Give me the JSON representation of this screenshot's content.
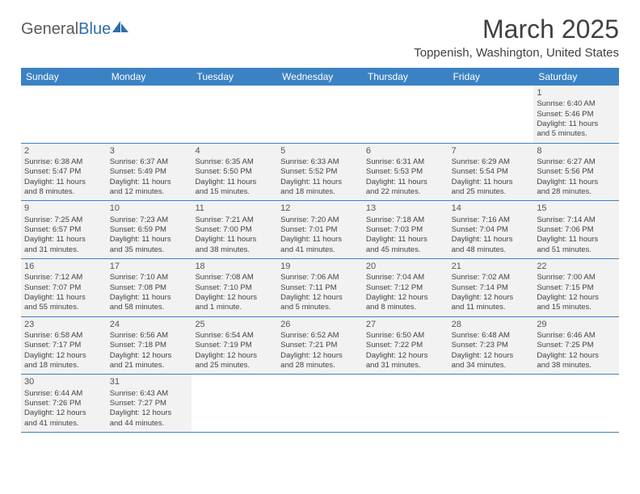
{
  "logo": {
    "text1": "General",
    "text2": "Blue"
  },
  "title": "March 2025",
  "location": "Toppenish, Washington, United States",
  "colors": {
    "header_bar": "#3b82c4",
    "cell_fill": "#f2f2f2",
    "row_border": "#3b82c4",
    "text": "#404040",
    "logo_gray": "#5a5a5a",
    "logo_blue": "#2f6fab"
  },
  "weekdays": [
    "Sunday",
    "Monday",
    "Tuesday",
    "Wednesday",
    "Thursday",
    "Friday",
    "Saturday"
  ],
  "weeks": [
    [
      null,
      null,
      null,
      null,
      null,
      null,
      {
        "n": "1",
        "sr": "Sunrise: 6:40 AM",
        "ss": "Sunset: 5:46 PM",
        "d1": "Daylight: 11 hours",
        "d2": "and 5 minutes."
      }
    ],
    [
      {
        "n": "2",
        "sr": "Sunrise: 6:38 AM",
        "ss": "Sunset: 5:47 PM",
        "d1": "Daylight: 11 hours",
        "d2": "and 8 minutes."
      },
      {
        "n": "3",
        "sr": "Sunrise: 6:37 AM",
        "ss": "Sunset: 5:49 PM",
        "d1": "Daylight: 11 hours",
        "d2": "and 12 minutes."
      },
      {
        "n": "4",
        "sr": "Sunrise: 6:35 AM",
        "ss": "Sunset: 5:50 PM",
        "d1": "Daylight: 11 hours",
        "d2": "and 15 minutes."
      },
      {
        "n": "5",
        "sr": "Sunrise: 6:33 AM",
        "ss": "Sunset: 5:52 PM",
        "d1": "Daylight: 11 hours",
        "d2": "and 18 minutes."
      },
      {
        "n": "6",
        "sr": "Sunrise: 6:31 AM",
        "ss": "Sunset: 5:53 PM",
        "d1": "Daylight: 11 hours",
        "d2": "and 22 minutes."
      },
      {
        "n": "7",
        "sr": "Sunrise: 6:29 AM",
        "ss": "Sunset: 5:54 PM",
        "d1": "Daylight: 11 hours",
        "d2": "and 25 minutes."
      },
      {
        "n": "8",
        "sr": "Sunrise: 6:27 AM",
        "ss": "Sunset: 5:56 PM",
        "d1": "Daylight: 11 hours",
        "d2": "and 28 minutes."
      }
    ],
    [
      {
        "n": "9",
        "sr": "Sunrise: 7:25 AM",
        "ss": "Sunset: 6:57 PM",
        "d1": "Daylight: 11 hours",
        "d2": "and 31 minutes."
      },
      {
        "n": "10",
        "sr": "Sunrise: 7:23 AM",
        "ss": "Sunset: 6:59 PM",
        "d1": "Daylight: 11 hours",
        "d2": "and 35 minutes."
      },
      {
        "n": "11",
        "sr": "Sunrise: 7:21 AM",
        "ss": "Sunset: 7:00 PM",
        "d1": "Daylight: 11 hours",
        "d2": "and 38 minutes."
      },
      {
        "n": "12",
        "sr": "Sunrise: 7:20 AM",
        "ss": "Sunset: 7:01 PM",
        "d1": "Daylight: 11 hours",
        "d2": "and 41 minutes."
      },
      {
        "n": "13",
        "sr": "Sunrise: 7:18 AM",
        "ss": "Sunset: 7:03 PM",
        "d1": "Daylight: 11 hours",
        "d2": "and 45 minutes."
      },
      {
        "n": "14",
        "sr": "Sunrise: 7:16 AM",
        "ss": "Sunset: 7:04 PM",
        "d1": "Daylight: 11 hours",
        "d2": "and 48 minutes."
      },
      {
        "n": "15",
        "sr": "Sunrise: 7:14 AM",
        "ss": "Sunset: 7:06 PM",
        "d1": "Daylight: 11 hours",
        "d2": "and 51 minutes."
      }
    ],
    [
      {
        "n": "16",
        "sr": "Sunrise: 7:12 AM",
        "ss": "Sunset: 7:07 PM",
        "d1": "Daylight: 11 hours",
        "d2": "and 55 minutes."
      },
      {
        "n": "17",
        "sr": "Sunrise: 7:10 AM",
        "ss": "Sunset: 7:08 PM",
        "d1": "Daylight: 11 hours",
        "d2": "and 58 minutes."
      },
      {
        "n": "18",
        "sr": "Sunrise: 7:08 AM",
        "ss": "Sunset: 7:10 PM",
        "d1": "Daylight: 12 hours",
        "d2": "and 1 minute."
      },
      {
        "n": "19",
        "sr": "Sunrise: 7:06 AM",
        "ss": "Sunset: 7:11 PM",
        "d1": "Daylight: 12 hours",
        "d2": "and 5 minutes."
      },
      {
        "n": "20",
        "sr": "Sunrise: 7:04 AM",
        "ss": "Sunset: 7:12 PM",
        "d1": "Daylight: 12 hours",
        "d2": "and 8 minutes."
      },
      {
        "n": "21",
        "sr": "Sunrise: 7:02 AM",
        "ss": "Sunset: 7:14 PM",
        "d1": "Daylight: 12 hours",
        "d2": "and 11 minutes."
      },
      {
        "n": "22",
        "sr": "Sunrise: 7:00 AM",
        "ss": "Sunset: 7:15 PM",
        "d1": "Daylight: 12 hours",
        "d2": "and 15 minutes."
      }
    ],
    [
      {
        "n": "23",
        "sr": "Sunrise: 6:58 AM",
        "ss": "Sunset: 7:17 PM",
        "d1": "Daylight: 12 hours",
        "d2": "and 18 minutes."
      },
      {
        "n": "24",
        "sr": "Sunrise: 6:56 AM",
        "ss": "Sunset: 7:18 PM",
        "d1": "Daylight: 12 hours",
        "d2": "and 21 minutes."
      },
      {
        "n": "25",
        "sr": "Sunrise: 6:54 AM",
        "ss": "Sunset: 7:19 PM",
        "d1": "Daylight: 12 hours",
        "d2": "and 25 minutes."
      },
      {
        "n": "26",
        "sr": "Sunrise: 6:52 AM",
        "ss": "Sunset: 7:21 PM",
        "d1": "Daylight: 12 hours",
        "d2": "and 28 minutes."
      },
      {
        "n": "27",
        "sr": "Sunrise: 6:50 AM",
        "ss": "Sunset: 7:22 PM",
        "d1": "Daylight: 12 hours",
        "d2": "and 31 minutes."
      },
      {
        "n": "28",
        "sr": "Sunrise: 6:48 AM",
        "ss": "Sunset: 7:23 PM",
        "d1": "Daylight: 12 hours",
        "d2": "and 34 minutes."
      },
      {
        "n": "29",
        "sr": "Sunrise: 6:46 AM",
        "ss": "Sunset: 7:25 PM",
        "d1": "Daylight: 12 hours",
        "d2": "and 38 minutes."
      }
    ],
    [
      {
        "n": "30",
        "sr": "Sunrise: 6:44 AM",
        "ss": "Sunset: 7:26 PM",
        "d1": "Daylight: 12 hours",
        "d2": "and 41 minutes."
      },
      {
        "n": "31",
        "sr": "Sunrise: 6:43 AM",
        "ss": "Sunset: 7:27 PM",
        "d1": "Daylight: 12 hours",
        "d2": "and 44 minutes."
      },
      null,
      null,
      null,
      null,
      null
    ]
  ]
}
